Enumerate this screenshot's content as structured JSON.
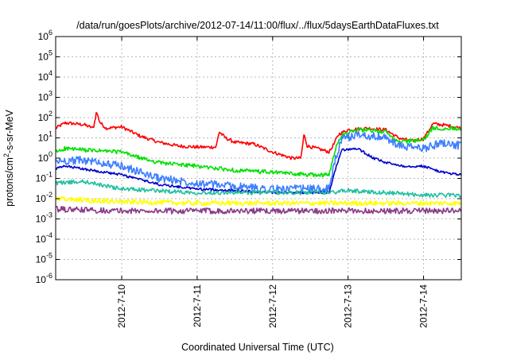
{
  "chart_data": {
    "type": "line",
    "title": "/data/run/goesPlots/archive/2012-07-14/11:00/flux/../flux/5daysEarthDataFluxes.txt",
    "xlabel": "Coordinated Universal Time (UTC)",
    "ylabel_parts": [
      "protons/cm",
      "2",
      "-s-sr-MeV"
    ],
    "yscale": "log",
    "ylim": [
      1e-06,
      1000000.0
    ],
    "xlim": [
      "2012-07-09 03:00",
      "2012-07-14 12:00"
    ],
    "x_ticks": [
      "2012-7-10",
      "2012-7-11",
      "2012-7-12",
      "2012-7-13",
      "2012-7-14"
    ],
    "y_ticks": [
      {
        "base": "10",
        "exp": "6"
      },
      {
        "base": "10",
        "exp": "5"
      },
      {
        "base": "10",
        "exp": "4"
      },
      {
        "base": "10",
        "exp": "3"
      },
      {
        "base": "10",
        "exp": "2"
      },
      {
        "base": "10",
        "exp": "1"
      },
      {
        "base": "10",
        "exp": "0"
      },
      {
        "base": "10",
        "exp": "-1"
      },
      {
        "base": "10",
        "exp": "-2"
      },
      {
        "base": "10",
        "exp": "-3"
      },
      {
        "base": "10",
        "exp": "-4"
      },
      {
        "base": "10",
        "exp": "-5"
      },
      {
        "base": "10",
        "exp": "-6"
      }
    ],
    "grid": true,
    "legend": "none",
    "series": [
      {
        "color": "#ff0000",
        "noise": 0.08,
        "points": [
          [
            "2012-07-09 03:00",
            30
          ],
          [
            "2012-07-09 06:00",
            55
          ],
          [
            "2012-07-09 12:00",
            45
          ],
          [
            "2012-07-09 15:00",
            30
          ],
          [
            "2012-07-09 16:00",
            200
          ],
          [
            "2012-07-09 17:00",
            60
          ],
          [
            "2012-07-09 19:00",
            30
          ],
          [
            "2012-07-10 00:00",
            35
          ],
          [
            "2012-07-10 06:00",
            12
          ],
          [
            "2012-07-10 12:00",
            6
          ],
          [
            "2012-07-10 18:00",
            4
          ],
          [
            "2012-07-11 00:00",
            3.5
          ],
          [
            "2012-07-11 06:00",
            3.5
          ],
          [
            "2012-07-11 07:00",
            20
          ],
          [
            "2012-07-11 09:00",
            10
          ],
          [
            "2012-07-11 12:00",
            6
          ],
          [
            "2012-07-11 18:00",
            5
          ],
          [
            "2012-07-12 00:00",
            2
          ],
          [
            "2012-07-12 06:00",
            1
          ],
          [
            "2012-07-12 09:00",
            1
          ],
          [
            "2012-07-12 10:00",
            15
          ],
          [
            "2012-07-12 11:00",
            4
          ],
          [
            "2012-07-12 16:00",
            2.5
          ],
          [
            "2012-07-12 18:00",
            2
          ],
          [
            "2012-07-12 19:30",
            5
          ],
          [
            "2012-07-12 21:00",
            15
          ],
          [
            "2012-07-13 00:00",
            25
          ],
          [
            "2012-07-13 06:00",
            30
          ],
          [
            "2012-07-13 12:00",
            25
          ],
          [
            "2012-07-13 16:00",
            10
          ],
          [
            "2012-07-13 20:00",
            7
          ],
          [
            "2012-07-14 00:00",
            9
          ],
          [
            "2012-07-14 03:00",
            50
          ],
          [
            "2012-07-14 08:00",
            40
          ],
          [
            "2012-07-14 12:00",
            30
          ]
        ]
      },
      {
        "color": "#00e000",
        "noise": 0.1,
        "points": [
          [
            "2012-07-09 03:00",
            2
          ],
          [
            "2012-07-09 06:00",
            3
          ],
          [
            "2012-07-09 12:00",
            2.5
          ],
          [
            "2012-07-10 00:00",
            2
          ],
          [
            "2012-07-10 06:00",
            1
          ],
          [
            "2012-07-10 12:00",
            0.6
          ],
          [
            "2012-07-11 00:00",
            0.4
          ],
          [
            "2012-07-11 12:00",
            0.25
          ],
          [
            "2012-07-12 00:00",
            0.2
          ],
          [
            "2012-07-12 12:00",
            0.15
          ],
          [
            "2012-07-12 18:00",
            0.15
          ],
          [
            "2012-07-12 20:00",
            3
          ],
          [
            "2012-07-12 22:00",
            15
          ],
          [
            "2012-07-13 03:00",
            25
          ],
          [
            "2012-07-13 12:00",
            20
          ],
          [
            "2012-07-13 16:00",
            6
          ],
          [
            "2012-07-14 00:00",
            8
          ],
          [
            "2012-07-14 03:00",
            30
          ],
          [
            "2012-07-14 12:00",
            30
          ]
        ]
      },
      {
        "color": "#3d7fff",
        "noise": 0.2,
        "points": [
          [
            "2012-07-09 03:00",
            0.7
          ],
          [
            "2012-07-09 12:00",
            0.8
          ],
          [
            "2012-07-10 00:00",
            0.4
          ],
          [
            "2012-07-10 12:00",
            0.1
          ],
          [
            "2012-07-11 00:00",
            0.06
          ],
          [
            "2012-07-11 12:00",
            0.04
          ],
          [
            "2012-07-12 00:00",
            0.03
          ],
          [
            "2012-07-12 12:00",
            0.03
          ],
          [
            "2012-07-12 18:00",
            0.03
          ],
          [
            "2012-07-12 20:00",
            1
          ],
          [
            "2012-07-12 22:00",
            8
          ],
          [
            "2012-07-13 03:00",
            15
          ],
          [
            "2012-07-13 12:00",
            10
          ],
          [
            "2012-07-13 16:00",
            4
          ],
          [
            "2012-07-14 00:00",
            3
          ],
          [
            "2012-07-14 06:00",
            6
          ],
          [
            "2012-07-14 12:00",
            4
          ]
        ]
      },
      {
        "color": "#0000cc",
        "noise": 0.06,
        "points": [
          [
            "2012-07-09 03:00",
            0.3
          ],
          [
            "2012-07-09 06:00",
            0.4
          ],
          [
            "2012-07-10 00:00",
            0.15
          ],
          [
            "2012-07-10 12:00",
            0.05
          ],
          [
            "2012-07-11 00:00",
            0.03
          ],
          [
            "2012-07-11 12:00",
            0.025
          ],
          [
            "2012-07-12 00:00",
            0.02
          ],
          [
            "2012-07-12 12:00",
            0.02
          ],
          [
            "2012-07-12 18:00",
            0.02
          ],
          [
            "2012-07-12 20:00",
            0.3
          ],
          [
            "2012-07-12 22:00",
            2.5
          ],
          [
            "2012-07-13 03:00",
            3
          ],
          [
            "2012-07-13 08:00",
            1
          ],
          [
            "2012-07-13 12:00",
            0.6
          ],
          [
            "2012-07-13 18:00",
            0.4
          ],
          [
            "2012-07-14 00:00",
            0.4
          ],
          [
            "2012-07-14 06:00",
            0.2
          ],
          [
            "2012-07-14 12:00",
            0.15
          ]
        ]
      },
      {
        "color": "#20c0a0",
        "noise": 0.1,
        "points": [
          [
            "2012-07-09 03:00",
            0.06
          ],
          [
            "2012-07-09 12:00",
            0.07
          ],
          [
            "2012-07-10 00:00",
            0.03
          ],
          [
            "2012-07-11 00:00",
            0.02
          ],
          [
            "2012-07-12 00:00",
            0.02
          ],
          [
            "2012-07-12 18:00",
            0.02
          ],
          [
            "2012-07-13 00:00",
            0.025
          ],
          [
            "2012-07-13 12:00",
            0.02
          ],
          [
            "2012-07-14 00:00",
            0.015
          ],
          [
            "2012-07-14 12:00",
            0.015
          ]
        ]
      },
      {
        "color": "#ffff00",
        "noise": 0.12,
        "points": [
          [
            "2012-07-09 03:00",
            0.01
          ],
          [
            "2012-07-10 00:00",
            0.007
          ],
          [
            "2012-07-11 00:00",
            0.006
          ],
          [
            "2012-07-12 00:00",
            0.006
          ],
          [
            "2012-07-13 00:00",
            0.006
          ],
          [
            "2012-07-14 00:00",
            0.006
          ],
          [
            "2012-07-14 12:00",
            0.006
          ]
        ]
      },
      {
        "color": "#8a3b8a",
        "noise": 0.14,
        "points": [
          [
            "2012-07-09 03:00",
            0.003
          ],
          [
            "2012-07-10 00:00",
            0.0025
          ],
          [
            "2012-07-11 00:00",
            0.0025
          ],
          [
            "2012-07-12 00:00",
            0.0025
          ],
          [
            "2012-07-13 00:00",
            0.0025
          ],
          [
            "2012-07-14 00:00",
            0.0025
          ],
          [
            "2012-07-14 12:00",
            0.0025
          ]
        ]
      }
    ]
  }
}
